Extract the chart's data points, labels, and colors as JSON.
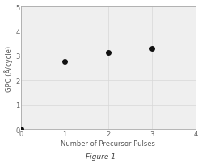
{
  "x": [
    0,
    1,
    2,
    3
  ],
  "y": [
    0.0,
    2.75,
    3.12,
    3.28
  ],
  "xlabel": "Number of Precursor Pulses",
  "ylabel": "GPC (Å/cycle)",
  "xlim": [
    0,
    4
  ],
  "ylim": [
    0.0,
    5.0
  ],
  "xticks": [
    0,
    1,
    2,
    3,
    4
  ],
  "yticks": [
    0.0,
    1.0,
    2.0,
    3.0,
    4.0,
    5.0
  ],
  "figure_label": "Figure 1",
  "marker": "o",
  "marker_color": "#111111",
  "marker_size": 5,
  "grid": true,
  "grid_color": "#d8d8d8",
  "plot_bg_color": "#efefef",
  "fig_bg_color": "#ffffff",
  "spine_color": "#aaaaaa",
  "label_fontsize": 6,
  "tick_fontsize": 6,
  "fig_label_fontsize": 6.5
}
